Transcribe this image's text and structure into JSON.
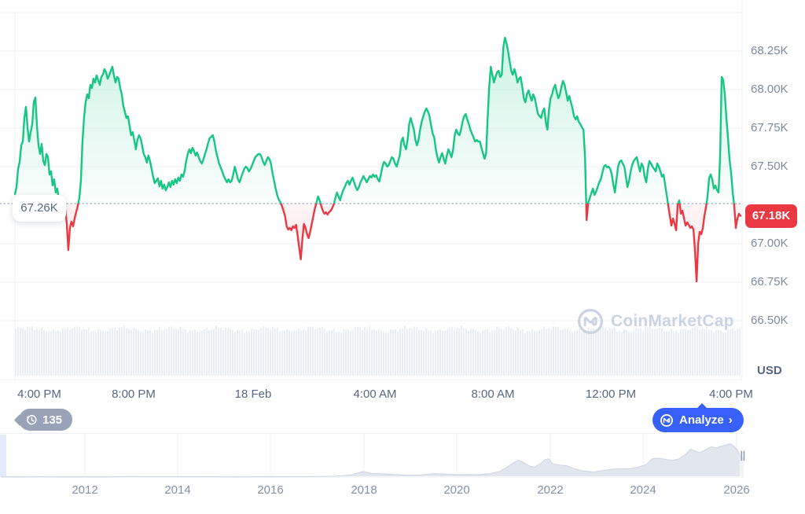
{
  "price_chart": {
    "y_axis": {
      "labels": [
        {
          "text": "68.25K",
          "price": 68250
        },
        {
          "text": "68.00K",
          "price": 68000
        },
        {
          "text": "67.75K",
          "price": 67750
        },
        {
          "text": "67.50K",
          "price": 67500
        },
        {
          "text": "67.00K",
          "price": 67000
        },
        {
          "text": "66.75K",
          "price": 66750
        },
        {
          "text": "66.50K",
          "price": 66500
        }
      ],
      "unlabeled_grid_price": 68500,
      "currency": "USD"
    },
    "x_axis": {
      "labels": [
        "4:00 PM",
        "8:00 PM",
        "18 Feb",
        "4:00 AM",
        "8:00 AM",
        "12:00 PM",
        "4:00 PM"
      ]
    },
    "baseline": {
      "label": "67.26K",
      "price": 67260
    },
    "last_price": {
      "label": "67.18K",
      "price": 67180
    },
    "history_badge": {
      "count": "135"
    },
    "analyze": {
      "label": "Analyze",
      "chevron": "›"
    },
    "watermark": {
      "text": "CoinMarketCap"
    },
    "colors": {
      "up": "#16c784",
      "down": "#ea3943",
      "accent_blue": "#3861fb",
      "grid": "#eef1f6",
      "dotted": "#a9b2c4",
      "label": "#808a9d",
      "label_dark": "#58667e",
      "volume": "#ebeef4",
      "minimap_fill": "#e2e6ee",
      "minimap_stroke": "#cdd4e2"
    }
  },
  "minimap": {
    "year_labels": [
      "2012",
      "2014",
      "2016",
      "2018",
      "2020",
      "2022",
      "2024",
      "2026"
    ]
  },
  "chart_data": [
    {
      "type": "line",
      "title": "BTC price, 24 hours (USD)",
      "ylabel": "USD",
      "ylim": [
        66500,
        68500
      ],
      "x_tick_labels": [
        "4:00 PM",
        "8:00 PM",
        "18 Feb",
        "4:00 AM",
        "8:00 AM",
        "12:00 PM",
        "4:00 PM"
      ],
      "open": 67260,
      "baseline": 67260,
      "last": 67180,
      "high": 68337,
      "low": 66755,
      "prices": [
        67322,
        67367,
        67485,
        67531,
        67638,
        67663,
        67816,
        67888,
        67755,
        67663,
        67724,
        67776,
        67918,
        67949,
        67765,
        67638,
        67582,
        67648,
        67536,
        67510,
        67582,
        67561,
        67449,
        67469,
        67378,
        67418,
        67332,
        67357,
        67281,
        67306,
        67245,
        67204,
        67224,
        67133,
        66959,
        67102,
        67143,
        67112,
        67163,
        67204,
        67245,
        67296,
        67408,
        67663,
        67816,
        67918,
        67969,
        67944,
        68031,
        68010,
        68071,
        68046,
        68092,
        68061,
        68031,
        68082,
        68097,
        68133,
        68112,
        68071,
        68092,
        68122,
        68148,
        68092,
        68046,
        68082,
        68071,
        68010,
        67969,
        67893,
        67857,
        67816,
        67827,
        67765,
        67704,
        67724,
        67673,
        67612,
        67673,
        67704,
        67684,
        67638,
        67582,
        67561,
        67526,
        67572,
        67536,
        67485,
        67434,
        67393,
        67408,
        67424,
        67372,
        67408,
        67357,
        67383,
        67347,
        67367,
        67398,
        67367,
        67408,
        67383,
        67418,
        67393,
        67429,
        67408,
        67449,
        67434,
        67469,
        67536,
        67582,
        67612,
        67587,
        67622,
        67602,
        67572,
        67592,
        67561,
        67536,
        67520,
        67546,
        67582,
        67612,
        67653,
        67684,
        67694,
        67704,
        67663,
        67602,
        67561,
        67520,
        67495,
        67469,
        67439,
        67418,
        67398,
        67418,
        67398,
        67408,
        67449,
        67500,
        67459,
        67418,
        67398,
        67429,
        67459,
        67485,
        67500,
        67490,
        67469,
        67485,
        67510,
        67536,
        67561,
        67572,
        67582,
        67582,
        67561,
        67531,
        67510,
        67536,
        67561,
        67551,
        67520,
        67459,
        67408,
        67357,
        67316,
        67286,
        67270,
        67245,
        67214,
        67179,
        67112,
        67092,
        67102,
        67087,
        67112,
        67102,
        67122,
        67051,
        66974,
        66898,
        67026,
        67128,
        67102,
        67061,
        67036,
        67077,
        67128,
        67179,
        67230,
        67265,
        67306,
        67281,
        67245,
        67214,
        67194,
        67204,
        67189,
        67204,
        67214,
        67230,
        67255,
        67296,
        67332,
        67306,
        67281,
        67316,
        67347,
        67367,
        67393,
        67408,
        67383,
        67408,
        67429,
        67398,
        67367,
        67347,
        67367,
        67398,
        67418,
        67439,
        67418,
        67398,
        67418,
        67439,
        67429,
        67449,
        67434,
        67444,
        67418,
        67403,
        67449,
        67500,
        67531,
        67520,
        67500,
        67510,
        67536,
        67561,
        67551,
        67520,
        67500,
        67536,
        67572,
        67663,
        67689,
        67638,
        67612,
        67673,
        67776,
        67816,
        67776,
        67740,
        67673,
        67638,
        67673,
        67740,
        67791,
        67827,
        67857,
        67878,
        67857,
        67827,
        67765,
        67714,
        67689,
        67612,
        67561,
        67526,
        67561,
        67587,
        67551,
        67520,
        67572,
        67612,
        67587,
        67561,
        67612,
        67704,
        67740,
        67714,
        67704,
        67740,
        67791,
        67827,
        67842,
        67806,
        67776,
        67740,
        67714,
        67689,
        67663,
        67673,
        67663,
        67663,
        67622,
        67587,
        67551,
        67587,
        67816,
        68020,
        68148,
        68097,
        68046,
        68082,
        68112,
        68122,
        68082,
        68097,
        68276,
        68337,
        68301,
        68250,
        68184,
        68122,
        68097,
        68133,
        68097,
        68046,
        68071,
        68082,
        68020,
        67944,
        67918,
        67969,
        67995,
        67959,
        67928,
        67969,
        67944,
        67893,
        67842,
        67827,
        67816,
        67857,
        67878,
        67791,
        67740,
        67867,
        67944,
        67969,
        68010,
        68031,
        67980,
        67944,
        67969,
        68020,
        68056,
        68031,
        67980,
        67928,
        67959,
        67918,
        67878,
        67827,
        67806,
        67827,
        67791,
        67776,
        67755,
        67740,
        67561,
        67153,
        67265,
        67296,
        67327,
        67357,
        67316,
        67337,
        67367,
        67398,
        67418,
        67459,
        67500,
        67510,
        67495,
        67500,
        67485,
        67449,
        67383,
        67332,
        67418,
        67500,
        67531,
        67541,
        67520,
        67500,
        67434,
        67367,
        67408,
        67469,
        67510,
        67536,
        67551,
        67561,
        67510,
        67469,
        67520,
        67500,
        67434,
        67398,
        67485,
        67536,
        67520,
        67500,
        67485,
        67469,
        67520,
        67500,
        67469,
        67434,
        67449,
        67383,
        67316,
        67245,
        67179,
        67117,
        67163,
        67128,
        67087,
        67255,
        67281,
        67194,
        67214,
        67163,
        67117,
        67138,
        67122,
        67102,
        67112,
        67092,
        66949,
        66755,
        67000,
        67077,
        67061,
        67102,
        67179,
        67235,
        67306,
        67424,
        67449,
        67418,
        67357,
        67378,
        67347,
        67332,
        67561,
        68082,
        68061,
        67969,
        67816,
        67689,
        67546,
        67459,
        67332,
        67245,
        67102,
        67163,
        67194,
        67180
      ]
    },
    {
      "type": "area",
      "title": "All-time price minimap",
      "xlabel_ticks": [
        2012,
        2014,
        2016,
        2018,
        2020,
        2022,
        2024,
        2026
      ],
      "unit": "price in thousands USD",
      "points": [
        [
          2010.2,
          0.3
        ],
        [
          2010.7,
          0.4
        ],
        [
          2011,
          0.5
        ],
        [
          2011.5,
          0.3
        ],
        [
          2012,
          0.2
        ],
        [
          2012.5,
          0.3
        ],
        [
          2013,
          1.5
        ],
        [
          2013.4,
          1.2
        ],
        [
          2013.9,
          1.1
        ],
        [
          2014.3,
          0.9
        ],
        [
          2014.8,
          0.6
        ],
        [
          2015.2,
          0.4
        ],
        [
          2015.7,
          0.5
        ],
        [
          2016.1,
          0.8
        ],
        [
          2016.6,
          1.2
        ],
        [
          2017,
          1.8
        ],
        [
          2017.4,
          3
        ],
        [
          2017.7,
          7
        ],
        [
          2017.97,
          19
        ],
        [
          2018.15,
          13
        ],
        [
          2018.4,
          11
        ],
        [
          2018.65,
          9
        ],
        [
          2018.95,
          6
        ],
        [
          2019.2,
          7
        ],
        [
          2019.5,
          12
        ],
        [
          2019.75,
          10
        ],
        [
          2020,
          8
        ],
        [
          2020.2,
          9
        ],
        [
          2020.45,
          8
        ],
        [
          2020.7,
          12
        ],
        [
          2020.9,
          19
        ],
        [
          2021.05,
          33
        ],
        [
          2021.2,
          49
        ],
        [
          2021.3,
          58
        ],
        [
          2021.42,
          50
        ],
        [
          2021.55,
          37
        ],
        [
          2021.65,
          34
        ],
        [
          2021.78,
          46
        ],
        [
          2021.88,
          60
        ],
        [
          2021.96,
          63
        ],
        [
          2022.05,
          45
        ],
        [
          2022.2,
          41
        ],
        [
          2022.35,
          39
        ],
        [
          2022.5,
          29
        ],
        [
          2022.7,
          21
        ],
        [
          2022.92,
          17
        ],
        [
          2023.1,
          22
        ],
        [
          2023.3,
          27
        ],
        [
          2023.5,
          28
        ],
        [
          2023.72,
          29
        ],
        [
          2023.9,
          35
        ],
        [
          2024.05,
          43
        ],
        [
          2024.18,
          63
        ],
        [
          2024.32,
          65
        ],
        [
          2024.45,
          61
        ],
        [
          2024.6,
          57
        ],
        [
          2024.75,
          62
        ],
        [
          2024.9,
          78
        ],
        [
          2025,
          96
        ],
        [
          2025.1,
          90
        ],
        [
          2025.2,
          84
        ],
        [
          2025.35,
          96
        ],
        [
          2025.45,
          104
        ],
        [
          2025.55,
          100
        ],
        [
          2025.65,
          106
        ],
        [
          2025.75,
          110
        ],
        [
          2025.85,
          115
        ],
        [
          2025.92,
          108
        ],
        [
          2026,
          95
        ],
        [
          2026.08,
          70
        ],
        [
          2026.18,
          58
        ]
      ]
    }
  ]
}
